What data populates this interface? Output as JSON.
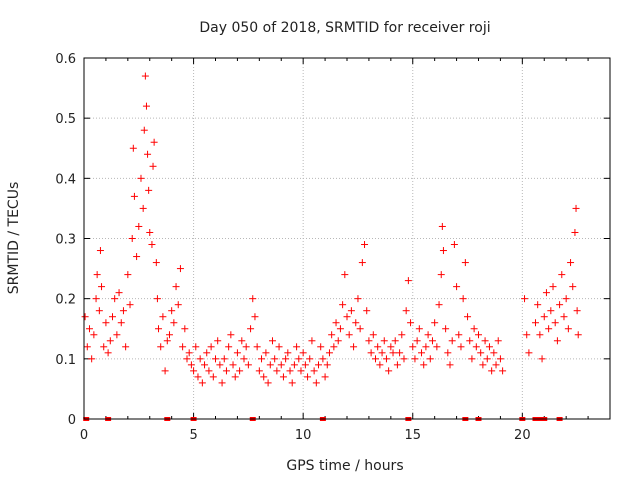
{
  "chart_data": {
    "type": "scatter",
    "title": "Day 050 of 2018, SRMTID for receiver roji",
    "xlabel": "GPS time / hours",
    "ylabel": "SRMTID / TECUs",
    "xlim": [
      0,
      24
    ],
    "ylim": [
      0,
      0.6
    ],
    "x_ticks": [
      0,
      5,
      10,
      15,
      20
    ],
    "y_ticks": [
      0,
      0.1,
      0.2,
      0.3,
      0.4,
      0.5,
      0.6
    ],
    "x_tick_labels": [
      "0",
      "5",
      "10",
      "15",
      "20"
    ],
    "y_tick_labels": [
      "0",
      "0.1",
      "0.2",
      "0.3",
      "0.4",
      "0.5",
      "0.6"
    ],
    "grid": true,
    "marker": "+",
    "color": "#ff0000",
    "series": [
      {
        "name": "SRMTID",
        "points": [
          [
            0.05,
            0.17
          ],
          [
            0.15,
            0.12
          ],
          [
            0.25,
            0.15
          ],
          [
            0.35,
            0.1
          ],
          [
            0.45,
            0.14
          ],
          [
            0.55,
            0.2
          ],
          [
            0.6,
            0.24
          ],
          [
            0.7,
            0.18
          ],
          [
            0.75,
            0.28
          ],
          [
            0.8,
            0.22
          ],
          [
            0.9,
            0.12
          ],
          [
            1.0,
            0.16
          ],
          [
            1.1,
            0.11
          ],
          [
            1.2,
            0.13
          ],
          [
            1.3,
            0.17
          ],
          [
            1.4,
            0.2
          ],
          [
            1.5,
            0.14
          ],
          [
            1.6,
            0.21
          ],
          [
            1.7,
            0.16
          ],
          [
            1.8,
            0.18
          ],
          [
            1.9,
            0.12
          ],
          [
            2.0,
            0.24
          ],
          [
            2.1,
            0.19
          ],
          [
            2.2,
            0.3
          ],
          [
            2.25,
            0.45
          ],
          [
            2.3,
            0.37
          ],
          [
            2.4,
            0.27
          ],
          [
            2.5,
            0.32
          ],
          [
            2.6,
            0.4
          ],
          [
            2.7,
            0.35
          ],
          [
            2.75,
            0.48
          ],
          [
            2.8,
            0.57
          ],
          [
            2.85,
            0.52
          ],
          [
            2.9,
            0.44
          ],
          [
            2.95,
            0.38
          ],
          [
            3.0,
            0.31
          ],
          [
            3.1,
            0.29
          ],
          [
            3.15,
            0.42
          ],
          [
            3.2,
            0.46
          ],
          [
            3.3,
            0.26
          ],
          [
            3.35,
            0.2
          ],
          [
            3.4,
            0.15
          ],
          [
            3.5,
            0.12
          ],
          [
            3.6,
            0.17
          ],
          [
            3.7,
            0.08
          ],
          [
            3.8,
            0.13
          ],
          [
            3.9,
            0.14
          ],
          [
            4.0,
            0.18
          ],
          [
            4.1,
            0.16
          ],
          [
            4.2,
            0.22
          ],
          [
            4.3,
            0.19
          ],
          [
            4.4,
            0.25
          ],
          [
            4.5,
            0.12
          ],
          [
            4.6,
            0.15
          ],
          [
            4.7,
            0.1
          ],
          [
            4.8,
            0.11
          ],
          [
            4.9,
            0.09
          ],
          [
            5.0,
            0.08
          ],
          [
            5.1,
            0.12
          ],
          [
            5.2,
            0.07
          ],
          [
            5.3,
            0.1
          ],
          [
            5.4,
            0.06
          ],
          [
            5.5,
            0.09
          ],
          [
            5.6,
            0.11
          ],
          [
            5.7,
            0.08
          ],
          [
            5.8,
            0.12
          ],
          [
            5.9,
            0.07
          ],
          [
            6.0,
            0.1
          ],
          [
            6.1,
            0.13
          ],
          [
            6.2,
            0.09
          ],
          [
            6.3,
            0.06
          ],
          [
            6.4,
            0.1
          ],
          [
            6.5,
            0.08
          ],
          [
            6.6,
            0.12
          ],
          [
            6.7,
            0.14
          ],
          [
            6.8,
            0.09
          ],
          [
            6.9,
            0.07
          ],
          [
            7.0,
            0.11
          ],
          [
            7.1,
            0.08
          ],
          [
            7.2,
            0.13
          ],
          [
            7.3,
            0.1
          ],
          [
            7.4,
            0.12
          ],
          [
            7.5,
            0.09
          ],
          [
            7.6,
            0.15
          ],
          [
            7.7,
            0.2
          ],
          [
            7.8,
            0.17
          ],
          [
            7.9,
            0.12
          ],
          [
            8.0,
            0.08
          ],
          [
            8.1,
            0.1
          ],
          [
            8.2,
            0.07
          ],
          [
            8.3,
            0.11
          ],
          [
            8.4,
            0.06
          ],
          [
            8.5,
            0.09
          ],
          [
            8.6,
            0.13
          ],
          [
            8.7,
            0.1
          ],
          [
            8.8,
            0.08
          ],
          [
            8.9,
            0.12
          ],
          [
            9.0,
            0.09
          ],
          [
            9.1,
            0.07
          ],
          [
            9.2,
            0.1
          ],
          [
            9.3,
            0.11
          ],
          [
            9.4,
            0.08
          ],
          [
            9.5,
            0.06
          ],
          [
            9.6,
            0.09
          ],
          [
            9.7,
            0.12
          ],
          [
            9.8,
            0.1
          ],
          [
            9.9,
            0.08
          ],
          [
            10.0,
            0.11
          ],
          [
            10.1,
            0.09
          ],
          [
            10.2,
            0.07
          ],
          [
            10.3,
            0.1
          ],
          [
            10.4,
            0.13
          ],
          [
            10.5,
            0.08
          ],
          [
            10.6,
            0.06
          ],
          [
            10.7,
            0.09
          ],
          [
            10.8,
            0.12
          ],
          [
            10.9,
            0.1
          ],
          [
            11.0,
            0.07
          ],
          [
            11.1,
            0.09
          ],
          [
            11.2,
            0.11
          ],
          [
            11.3,
            0.14
          ],
          [
            11.4,
            0.12
          ],
          [
            11.5,
            0.16
          ],
          [
            11.6,
            0.13
          ],
          [
            11.7,
            0.15
          ],
          [
            11.8,
            0.19
          ],
          [
            11.9,
            0.24
          ],
          [
            12.0,
            0.17
          ],
          [
            12.1,
            0.14
          ],
          [
            12.2,
            0.18
          ],
          [
            12.3,
            0.12
          ],
          [
            12.4,
            0.16
          ],
          [
            12.5,
            0.2
          ],
          [
            12.6,
            0.15
          ],
          [
            12.7,
            0.26
          ],
          [
            12.8,
            0.29
          ],
          [
            12.9,
            0.18
          ],
          [
            13.0,
            0.13
          ],
          [
            13.1,
            0.11
          ],
          [
            13.2,
            0.14
          ],
          [
            13.3,
            0.1
          ],
          [
            13.4,
            0.12
          ],
          [
            13.5,
            0.09
          ],
          [
            13.6,
            0.11
          ],
          [
            13.7,
            0.13
          ],
          [
            13.8,
            0.1
          ],
          [
            13.9,
            0.08
          ],
          [
            14.0,
            0.12
          ],
          [
            14.1,
            0.11
          ],
          [
            14.2,
            0.13
          ],
          [
            14.3,
            0.09
          ],
          [
            14.4,
            0.11
          ],
          [
            14.5,
            0.14
          ],
          [
            14.6,
            0.1
          ],
          [
            14.7,
            0.18
          ],
          [
            14.8,
            0.23
          ],
          [
            14.9,
            0.16
          ],
          [
            15.0,
            0.12
          ],
          [
            15.1,
            0.1
          ],
          [
            15.2,
            0.13
          ],
          [
            15.3,
            0.15
          ],
          [
            15.4,
            0.11
          ],
          [
            15.5,
            0.09
          ],
          [
            15.6,
            0.12
          ],
          [
            15.7,
            0.14
          ],
          [
            15.8,
            0.1
          ],
          [
            15.9,
            0.13
          ],
          [
            16.0,
            0.16
          ],
          [
            16.1,
            0.12
          ],
          [
            16.2,
            0.19
          ],
          [
            16.3,
            0.24
          ],
          [
            16.35,
            0.32
          ],
          [
            16.4,
            0.28
          ],
          [
            16.5,
            0.15
          ],
          [
            16.6,
            0.11
          ],
          [
            16.7,
            0.09
          ],
          [
            16.8,
            0.13
          ],
          [
            16.9,
            0.29
          ],
          [
            17.0,
            0.22
          ],
          [
            17.1,
            0.14
          ],
          [
            17.2,
            0.12
          ],
          [
            17.3,
            0.2
          ],
          [
            17.4,
            0.26
          ],
          [
            17.5,
            0.17
          ],
          [
            17.6,
            0.13
          ],
          [
            17.7,
            0.1
          ],
          [
            17.8,
            0.15
          ],
          [
            17.9,
            0.12
          ],
          [
            18.0,
            0.14
          ],
          [
            18.1,
            0.11
          ],
          [
            18.2,
            0.09
          ],
          [
            18.3,
            0.13
          ],
          [
            18.4,
            0.1
          ],
          [
            18.5,
            0.12
          ],
          [
            18.6,
            0.08
          ],
          [
            18.7,
            0.11
          ],
          [
            18.8,
            0.09
          ],
          [
            18.9,
            0.13
          ],
          [
            19.0,
            0.1
          ],
          [
            19.1,
            0.08
          ],
          [
            20.1,
            0.2
          ],
          [
            20.2,
            0.14
          ],
          [
            20.3,
            0.11
          ],
          [
            20.6,
            0.16
          ],
          [
            20.7,
            0.19
          ],
          [
            20.8,
            0.14
          ],
          [
            20.9,
            0.1
          ],
          [
            21.0,
            0.17
          ],
          [
            21.1,
            0.21
          ],
          [
            21.2,
            0.15
          ],
          [
            21.3,
            0.18
          ],
          [
            21.4,
            0.22
          ],
          [
            21.5,
            0.16
          ],
          [
            21.6,
            0.13
          ],
          [
            21.7,
            0.19
          ],
          [
            21.8,
            0.24
          ],
          [
            21.9,
            0.17
          ],
          [
            22.0,
            0.2
          ],
          [
            22.1,
            0.15
          ],
          [
            22.2,
            0.26
          ],
          [
            22.3,
            0.22
          ],
          [
            22.4,
            0.31
          ],
          [
            22.45,
            0.35
          ],
          [
            22.5,
            0.18
          ],
          [
            22.55,
            0.14
          ]
        ]
      }
    ],
    "gap_markers_x": [
      0.1,
      1.1,
      3.8,
      5.0,
      7.7,
      10.9,
      14.8,
      17.4,
      18.0,
      20.0,
      20.6,
      20.8,
      21.0,
      21.7
    ]
  }
}
